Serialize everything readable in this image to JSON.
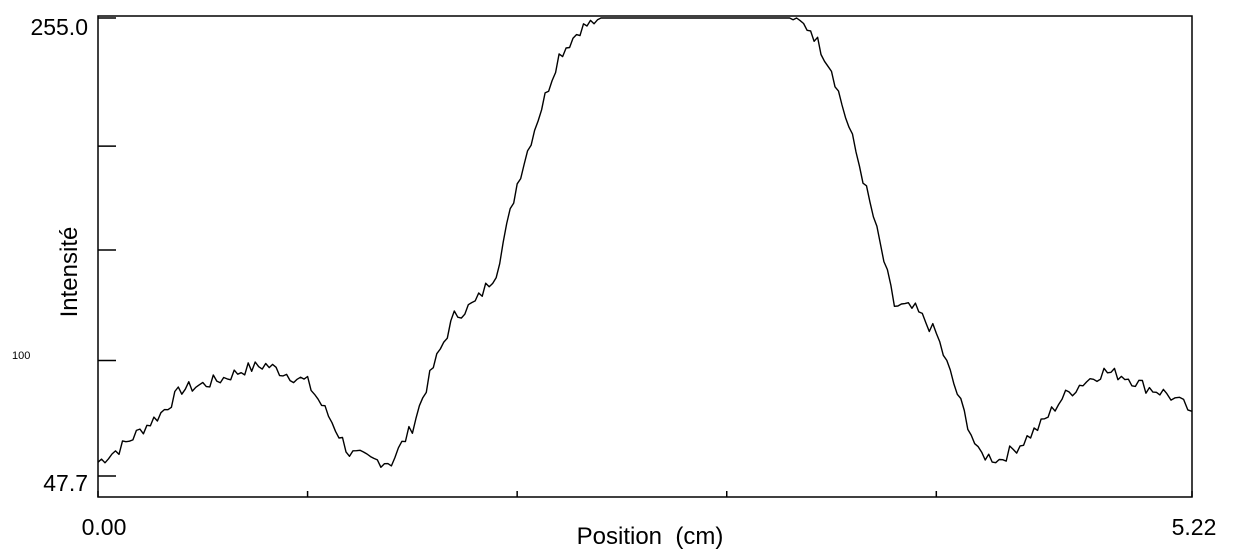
{
  "chart_data": {
    "type": "line",
    "title": "",
    "xlabel": "Position  (cm)",
    "ylabel": "Intensité",
    "xlim": [
      0.0,
      5.22
    ],
    "ylim": [
      47.7,
      255.0
    ],
    "y_tick_labels": [
      {
        "value": 255.0,
        "label": "255.0"
      },
      {
        "value": 100,
        "label": "100"
      },
      {
        "value": 47.7,
        "label": "47.7"
      }
    ],
    "x_tick_labels": [
      {
        "value": 0.0,
        "label": "0.00"
      },
      {
        "value": 5.22,
        "label": "5.22"
      }
    ],
    "y_minor_ticks": [
      255.0,
      197.0,
      150.0,
      100.0,
      47.7
    ],
    "x_minor_ticks": [
      0.0,
      1.0,
      2.0,
      3.0,
      4.0,
      5.22
    ],
    "grid": false,
    "line_color": "#000000",
    "series": [
      {
        "x": [
          0.0,
          0.1,
          0.2,
          0.3,
          0.4,
          0.5,
          0.6,
          0.7,
          0.8,
          0.9,
          1.0,
          1.1,
          1.2,
          1.3,
          1.4,
          1.5,
          1.6,
          1.7,
          1.8,
          1.9,
          2.0,
          2.1,
          2.2,
          2.3,
          2.4,
          2.5,
          2.6,
          2.7,
          2.8,
          2.9,
          3.0,
          3.1,
          3.2,
          3.3,
          3.4,
          3.5,
          3.6,
          3.7,
          3.8,
          3.9,
          4.0,
          4.1,
          4.2,
          4.3,
          4.4,
          4.5,
          4.6,
          4.7,
          4.8,
          4.9,
          5.0,
          5.1,
          5.22
        ],
        "y": [
          54,
          60,
          68,
          76,
          87,
          89,
          92,
          96,
          98,
          94,
          90,
          75,
          58,
          55,
          54,
          70,
          97,
          120,
          126,
          140,
          180,
          210,
          238,
          250,
          255,
          255,
          255,
          255,
          255,
          255,
          255,
          255,
          255,
          255,
          250,
          232,
          200,
          165,
          125,
          123,
          112,
          85,
          58,
          55,
          62,
          71,
          83,
          90,
          95,
          93,
          88,
          85,
          77
        ]
      }
    ]
  }
}
